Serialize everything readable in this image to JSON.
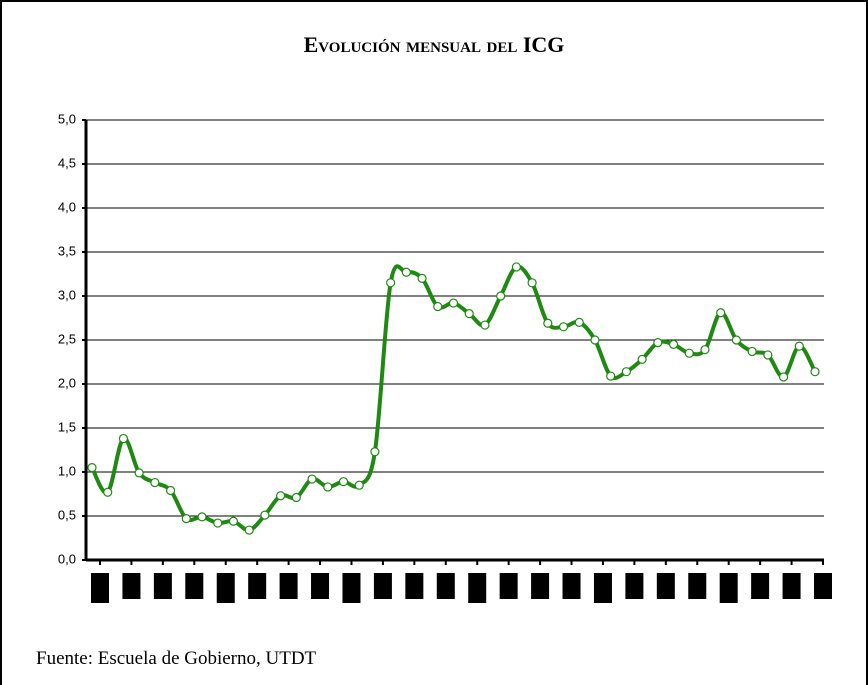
{
  "chart_data": {
    "type": "line",
    "title": "Evolución mensual del ICG",
    "source": "Fuente: Escuela de Gobierno, UTDT",
    "categories": [
      null,
      null,
      null,
      null,
      null,
      null,
      null,
      null,
      null,
      null,
      null,
      null,
      null,
      null,
      null,
      null,
      null,
      null,
      null,
      null,
      null,
      null,
      null,
      null,
      null,
      null,
      null,
      null,
      null,
      null,
      null,
      null,
      null,
      null,
      null,
      null,
      null,
      null,
      null,
      null,
      null,
      null,
      null,
      null,
      null,
      null,
      null
    ],
    "series": [
      {
        "name": "ICG",
        "color": "#1f8a12",
        "values": [
          1.05,
          0.77,
          1.38,
          0.99,
          0.88,
          0.79,
          0.47,
          0.49,
          0.42,
          0.44,
          0.34,
          0.51,
          0.73,
          0.71,
          0.92,
          0.83,
          0.89,
          0.85,
          1.23,
          3.15,
          3.27,
          3.2,
          2.88,
          2.92,
          2.8,
          2.67,
          3.0,
          3.33,
          3.15,
          2.69,
          2.65,
          2.7,
          2.5,
          2.09,
          2.14,
          2.28,
          2.47,
          2.45,
          2.35,
          2.39,
          2.81,
          2.5,
          2.37,
          2.33,
          2.08,
          2.43,
          2.14
        ]
      }
    ],
    "ylim": [
      0,
      5
    ],
    "yticks": [
      {
        "value": 0,
        "label": "0,0"
      },
      {
        "value": 0.5,
        "label": "0,5"
      },
      {
        "value": 1,
        "label": "1,0"
      },
      {
        "value": 1.5,
        "label": "1,5"
      },
      {
        "value": 2,
        "label": "2,0"
      },
      {
        "value": 2.5,
        "label": "2,5"
      },
      {
        "value": 3,
        "label": "3,0"
      },
      {
        "value": 3.5,
        "label": "3,5"
      },
      {
        "value": 4,
        "label": "4,0"
      },
      {
        "value": 4.5,
        "label": "4,5"
      },
      {
        "value": 5,
        "label": "5,0"
      }
    ],
    "grid": true
  }
}
